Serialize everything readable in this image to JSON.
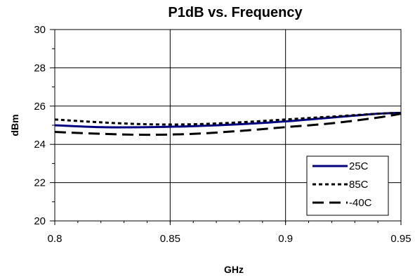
{
  "chart_data": {
    "type": "line",
    "title": "P1dB vs. Frequency",
    "xlabel": "GHz",
    "ylabel": "dBm",
    "xlim": [
      0.8,
      0.95
    ],
    "ylim": [
      20,
      30
    ],
    "xticks": [
      "0.8",
      "0.85",
      "0.9",
      "0.95"
    ],
    "yticks": [
      "20",
      "22",
      "24",
      "26",
      "28",
      "30"
    ],
    "grid": true,
    "legend_position": "bottom-right",
    "series": [
      {
        "name": "25C",
        "color": "#000080",
        "style": "solid",
        "x": [
          0.8,
          0.82,
          0.84,
          0.86,
          0.88,
          0.9,
          0.92,
          0.94,
          0.95
        ],
        "y": [
          25.0,
          24.9,
          24.9,
          24.95,
          25.05,
          25.2,
          25.4,
          25.6,
          25.65
        ]
      },
      {
        "name": "85C",
        "color": "#000000",
        "style": "dotted",
        "x": [
          0.8,
          0.82,
          0.84,
          0.86,
          0.88,
          0.9,
          0.92,
          0.94,
          0.95
        ],
        "y": [
          25.3,
          25.15,
          25.05,
          25.05,
          25.15,
          25.3,
          25.45,
          25.6,
          25.65
        ]
      },
      {
        "name": "-40C",
        "color": "#000000",
        "style": "dashed",
        "x": [
          0.8,
          0.82,
          0.84,
          0.86,
          0.88,
          0.9,
          0.92,
          0.94,
          0.95
        ],
        "y": [
          24.65,
          24.55,
          24.5,
          24.55,
          24.7,
          24.9,
          25.1,
          25.4,
          25.6
        ]
      }
    ]
  }
}
